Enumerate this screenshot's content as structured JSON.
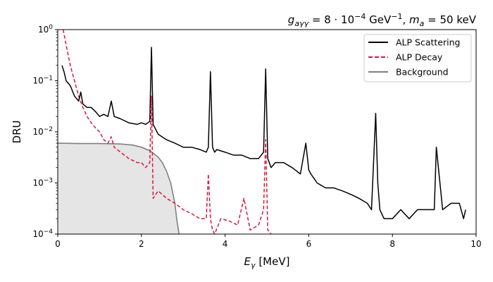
{
  "chart_data": {
    "type": "line",
    "title": "g_{aγγ} = 8·10^{−4} GeV^{−1}, m_a = 50 keV",
    "title_parts": {
      "g": "g",
      "g_sub": "aγγ",
      "eq1": " = 8 · 10",
      "exp1": "−4",
      "unit": " GeV",
      "exp2": "−1",
      "comma": ", ",
      "m": "m",
      "m_sub": "a",
      "eq2": " = 50 keV"
    },
    "xlabel": "E_γ [MeV]",
    "xlabel_parts": {
      "sym": "E",
      "sub": "γ",
      "rest": " [MeV]"
    },
    "ylabel": "DRU",
    "xlim": [
      0,
      10
    ],
    "ylim": [
      0.0001,
      1
    ],
    "yscale": "log",
    "x_ticks": [
      0,
      2,
      4,
      6,
      8,
      10
    ],
    "x_tick_labels": [
      "0",
      "2",
      "4",
      "6",
      "8",
      "10"
    ],
    "y_ticks": [
      0.0001,
      0.001,
      0.01,
      0.1,
      1
    ],
    "y_tick_base": "10",
    "y_tick_exps": [
      "−4",
      "−3",
      "−2",
      "−1",
      "0"
    ],
    "legend_position": "top-right",
    "series": [
      {
        "name": "ALP Scattering",
        "color": "#000000",
        "style": "solid",
        "x": [
          0.1,
          0.15,
          0.2,
          0.3,
          0.4,
          0.5,
          0.55,
          0.6,
          0.7,
          0.8,
          0.9,
          1.0,
          1.1,
          1.2,
          1.28,
          1.35,
          1.5,
          1.7,
          1.9,
          2.0,
          2.1,
          2.2,
          2.24,
          2.28,
          2.4,
          2.6,
          2.8,
          3.0,
          3.2,
          3.4,
          3.55,
          3.6,
          3.65,
          3.7,
          3.75,
          3.8,
          4.0,
          4.2,
          4.4,
          4.6,
          4.8,
          4.92,
          4.97,
          5.02,
          5.1,
          5.2,
          5.4,
          5.6,
          5.8,
          5.93,
          6.0,
          6.05,
          6.2,
          6.4,
          6.6,
          6.8,
          7.0,
          7.2,
          7.4,
          7.5,
          7.6,
          7.65,
          7.7,
          7.8,
          8.0,
          8.2,
          8.4,
          8.6,
          8.8,
          9.0,
          9.05,
          9.2,
          9.4,
          9.6,
          9.7,
          9.75
        ],
        "y": [
          0.2,
          0.15,
          0.1,
          0.08,
          0.05,
          0.04,
          0.06,
          0.035,
          0.03,
          0.03,
          0.025,
          0.02,
          0.022,
          0.02,
          0.04,
          0.02,
          0.018,
          0.015,
          0.014,
          0.015,
          0.014,
          0.016,
          0.45,
          0.014,
          0.009,
          0.007,
          0.006,
          0.005,
          0.005,
          0.0045,
          0.004,
          0.005,
          0.15,
          0.005,
          0.004,
          0.0045,
          0.004,
          0.0035,
          0.0035,
          0.003,
          0.003,
          0.004,
          0.17,
          0.003,
          0.002,
          0.0025,
          0.0025,
          0.002,
          0.0015,
          0.006,
          0.0018,
          0.0015,
          0.001,
          0.0008,
          0.0008,
          0.0007,
          0.0006,
          0.0005,
          0.0004,
          0.0003,
          0.023,
          0.001,
          0.0003,
          0.0002,
          0.0002,
          0.0003,
          0.0002,
          0.0003,
          0.0003,
          0.0003,
          0.005,
          0.0003,
          0.0004,
          0.0004,
          0.0002,
          0.0003
        ]
      },
      {
        "name": "ALP Decay",
        "color": "#dc143c",
        "style": "dashed",
        "x": [
          0.13,
          0.2,
          0.3,
          0.4,
          0.5,
          0.6,
          0.7,
          0.8,
          0.9,
          1.0,
          1.1,
          1.2,
          1.28,
          1.35,
          1.5,
          1.7,
          1.9,
          2.0,
          2.1,
          2.2,
          2.24,
          2.28,
          2.4,
          2.6,
          2.8,
          3.0,
          3.2,
          3.4,
          3.55,
          3.6,
          3.65,
          3.7,
          3.75,
          3.9,
          4.1,
          4.3,
          4.45,
          4.6,
          4.8,
          4.92,
          4.97,
          5.02,
          5.1
        ],
        "y": [
          1.0,
          0.5,
          0.2,
          0.1,
          0.05,
          0.03,
          0.02,
          0.015,
          0.012,
          0.01,
          0.007,
          0.006,
          0.008,
          0.005,
          0.004,
          0.003,
          0.0025,
          0.0025,
          0.002,
          0.0025,
          0.05,
          0.0005,
          0.0007,
          0.0005,
          0.0004,
          0.0003,
          0.00025,
          0.0002,
          0.0002,
          0.0015,
          0.0002,
          0.00012,
          0.0001,
          0.0002,
          0.00018,
          0.00015,
          0.0005,
          0.00012,
          0.00015,
          0.0003,
          0.007,
          0.00012,
          0.0001
        ]
      },
      {
        "name": "Background",
        "color": "#808080",
        "style": "solid",
        "fill": "#e5e5e5",
        "x": [
          0.0,
          0.5,
          1.0,
          1.5,
          1.8,
          2.0,
          2.2,
          2.4,
          2.5,
          2.6,
          2.7,
          2.8,
          2.85,
          2.9
        ],
        "y": [
          0.006,
          0.0059,
          0.0059,
          0.0058,
          0.0055,
          0.005,
          0.0043,
          0.0032,
          0.0025,
          0.0017,
          0.001,
          0.0004,
          0.00018,
          0.0001
        ]
      }
    ]
  }
}
